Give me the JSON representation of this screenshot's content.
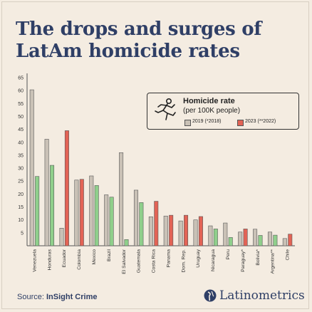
{
  "title": {
    "line1": "The drops and surges of",
    "line2": "LatAm homicide rates"
  },
  "legend": {
    "title": "Homicide rate",
    "subtitle": "(per 100K people)",
    "series1_label": "2019 (*2018)",
    "series2_label": "2023 (**2022)",
    "icon": "running-figure-icon"
  },
  "source": {
    "prefix": "Source: ",
    "name": "InSight Crime"
  },
  "brand": {
    "name": "Latinometrics",
    "icon": "globe-logo-icon"
  },
  "colors": {
    "background": "#f4ece1",
    "title": "#2f3f66",
    "bar_2019": "#c9c1b6",
    "bar_2023_decrease": "#8fcf8b",
    "bar_2023_increase": "#e26355",
    "bar_stroke": "#5a5a5a"
  },
  "chart_data": {
    "type": "bar",
    "title": "The drops and surges of LatAm homicide rates",
    "xlabel": "",
    "ylabel": "",
    "ylim": [
      0,
      65
    ],
    "yticks": [
      5,
      10,
      15,
      20,
      25,
      30,
      35,
      40,
      45,
      50,
      55,
      60,
      65
    ],
    "grid": false,
    "legend_position": "top-right",
    "categories": [
      "Venezuela",
      "Honduras",
      "Ecuador",
      "Colombia",
      "Mexico",
      "Brazil",
      "El Salvador",
      "Guatemala",
      "Costa Rica",
      "Panama",
      "Dom. Rep.",
      "Uruguay",
      "Nicaragua",
      "Peru",
      "Paraguay*",
      "Bolivia*",
      "Argentina**",
      "Chile"
    ],
    "series": [
      {
        "name": "2019 (*2018)",
        "values": [
          60.3,
          41.2,
          6.8,
          25.4,
          27.0,
          19.7,
          36.0,
          21.5,
          11.2,
          11.5,
          9.6,
          10.0,
          7.7,
          8.8,
          5.3,
          6.4,
          5.3,
          2.8
        ]
      },
      {
        "name": "2023 (**2022)",
        "values": [
          26.8,
          31.1,
          44.5,
          25.7,
          23.3,
          18.8,
          2.4,
          16.7,
          17.2,
          11.8,
          11.8,
          11.3,
          6.5,
          3.2,
          6.5,
          4.0,
          4.1,
          4.5
        ]
      }
    ]
  }
}
